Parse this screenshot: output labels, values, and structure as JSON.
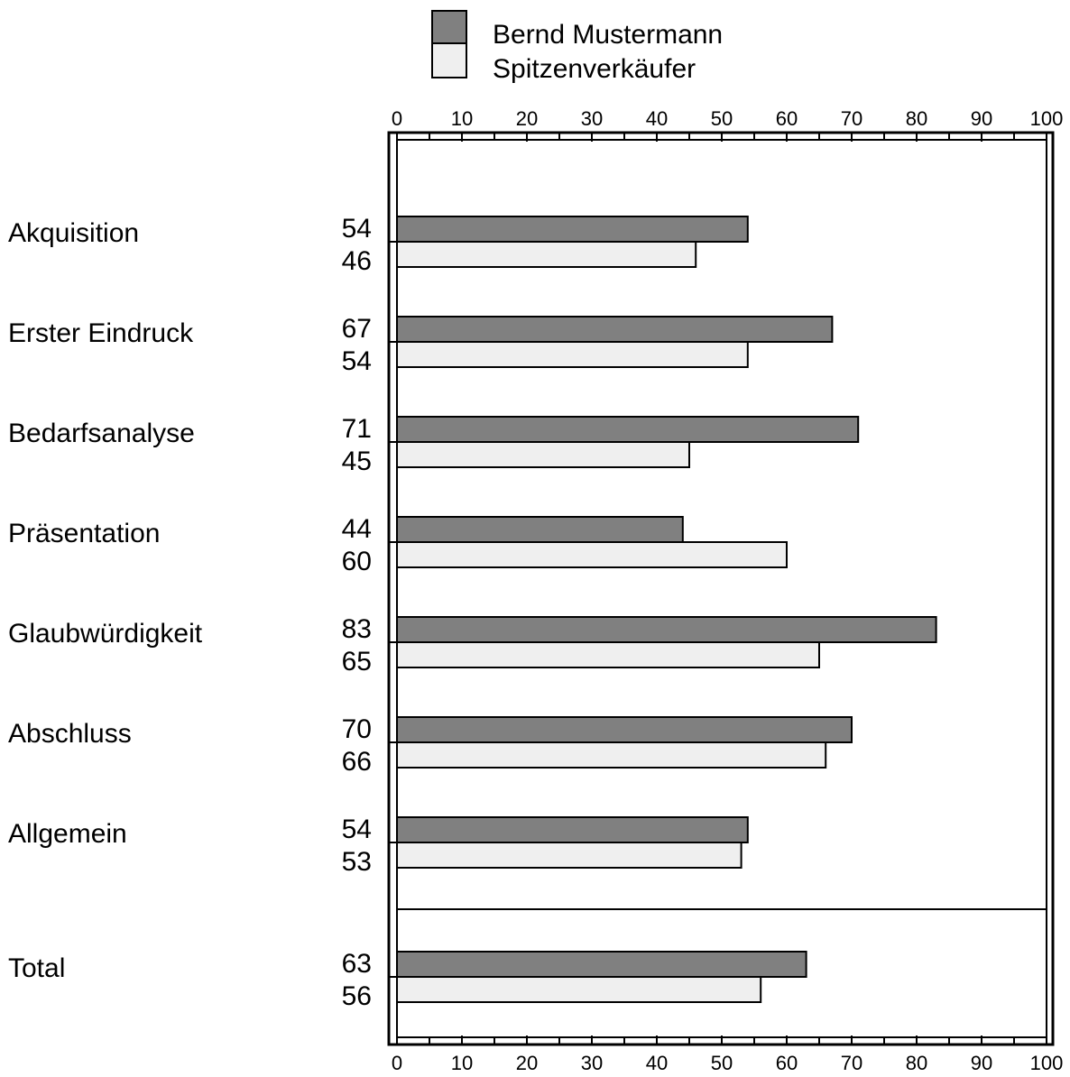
{
  "chart_data": {
    "type": "bar",
    "orientation": "horizontal",
    "categories": [
      "Akquisition",
      "Erster Eindruck",
      "Bedarfsanalyse",
      "Präsentation",
      "Glaubwürdigkeit",
      "Abschluss",
      "Allgemein",
      "Total"
    ],
    "series": [
      {
        "name": "Bernd Mustermann",
        "values": [
          54,
          67,
          71,
          44,
          83,
          70,
          54,
          63
        ]
      },
      {
        "name": "Spitzenverkäufer",
        "values": [
          46,
          54,
          45,
          60,
          65,
          66,
          53,
          56
        ]
      }
    ],
    "xlim": [
      0,
      100
    ],
    "xticks": [
      "0",
      "10",
      "20",
      "30",
      "40",
      "50",
      "60",
      "70",
      "80",
      "90",
      "100"
    ],
    "legend_position": "top",
    "grid": false,
    "colors": {
      "series1": "#808080",
      "series2": "#efefef",
      "frame": "#000000"
    }
  }
}
